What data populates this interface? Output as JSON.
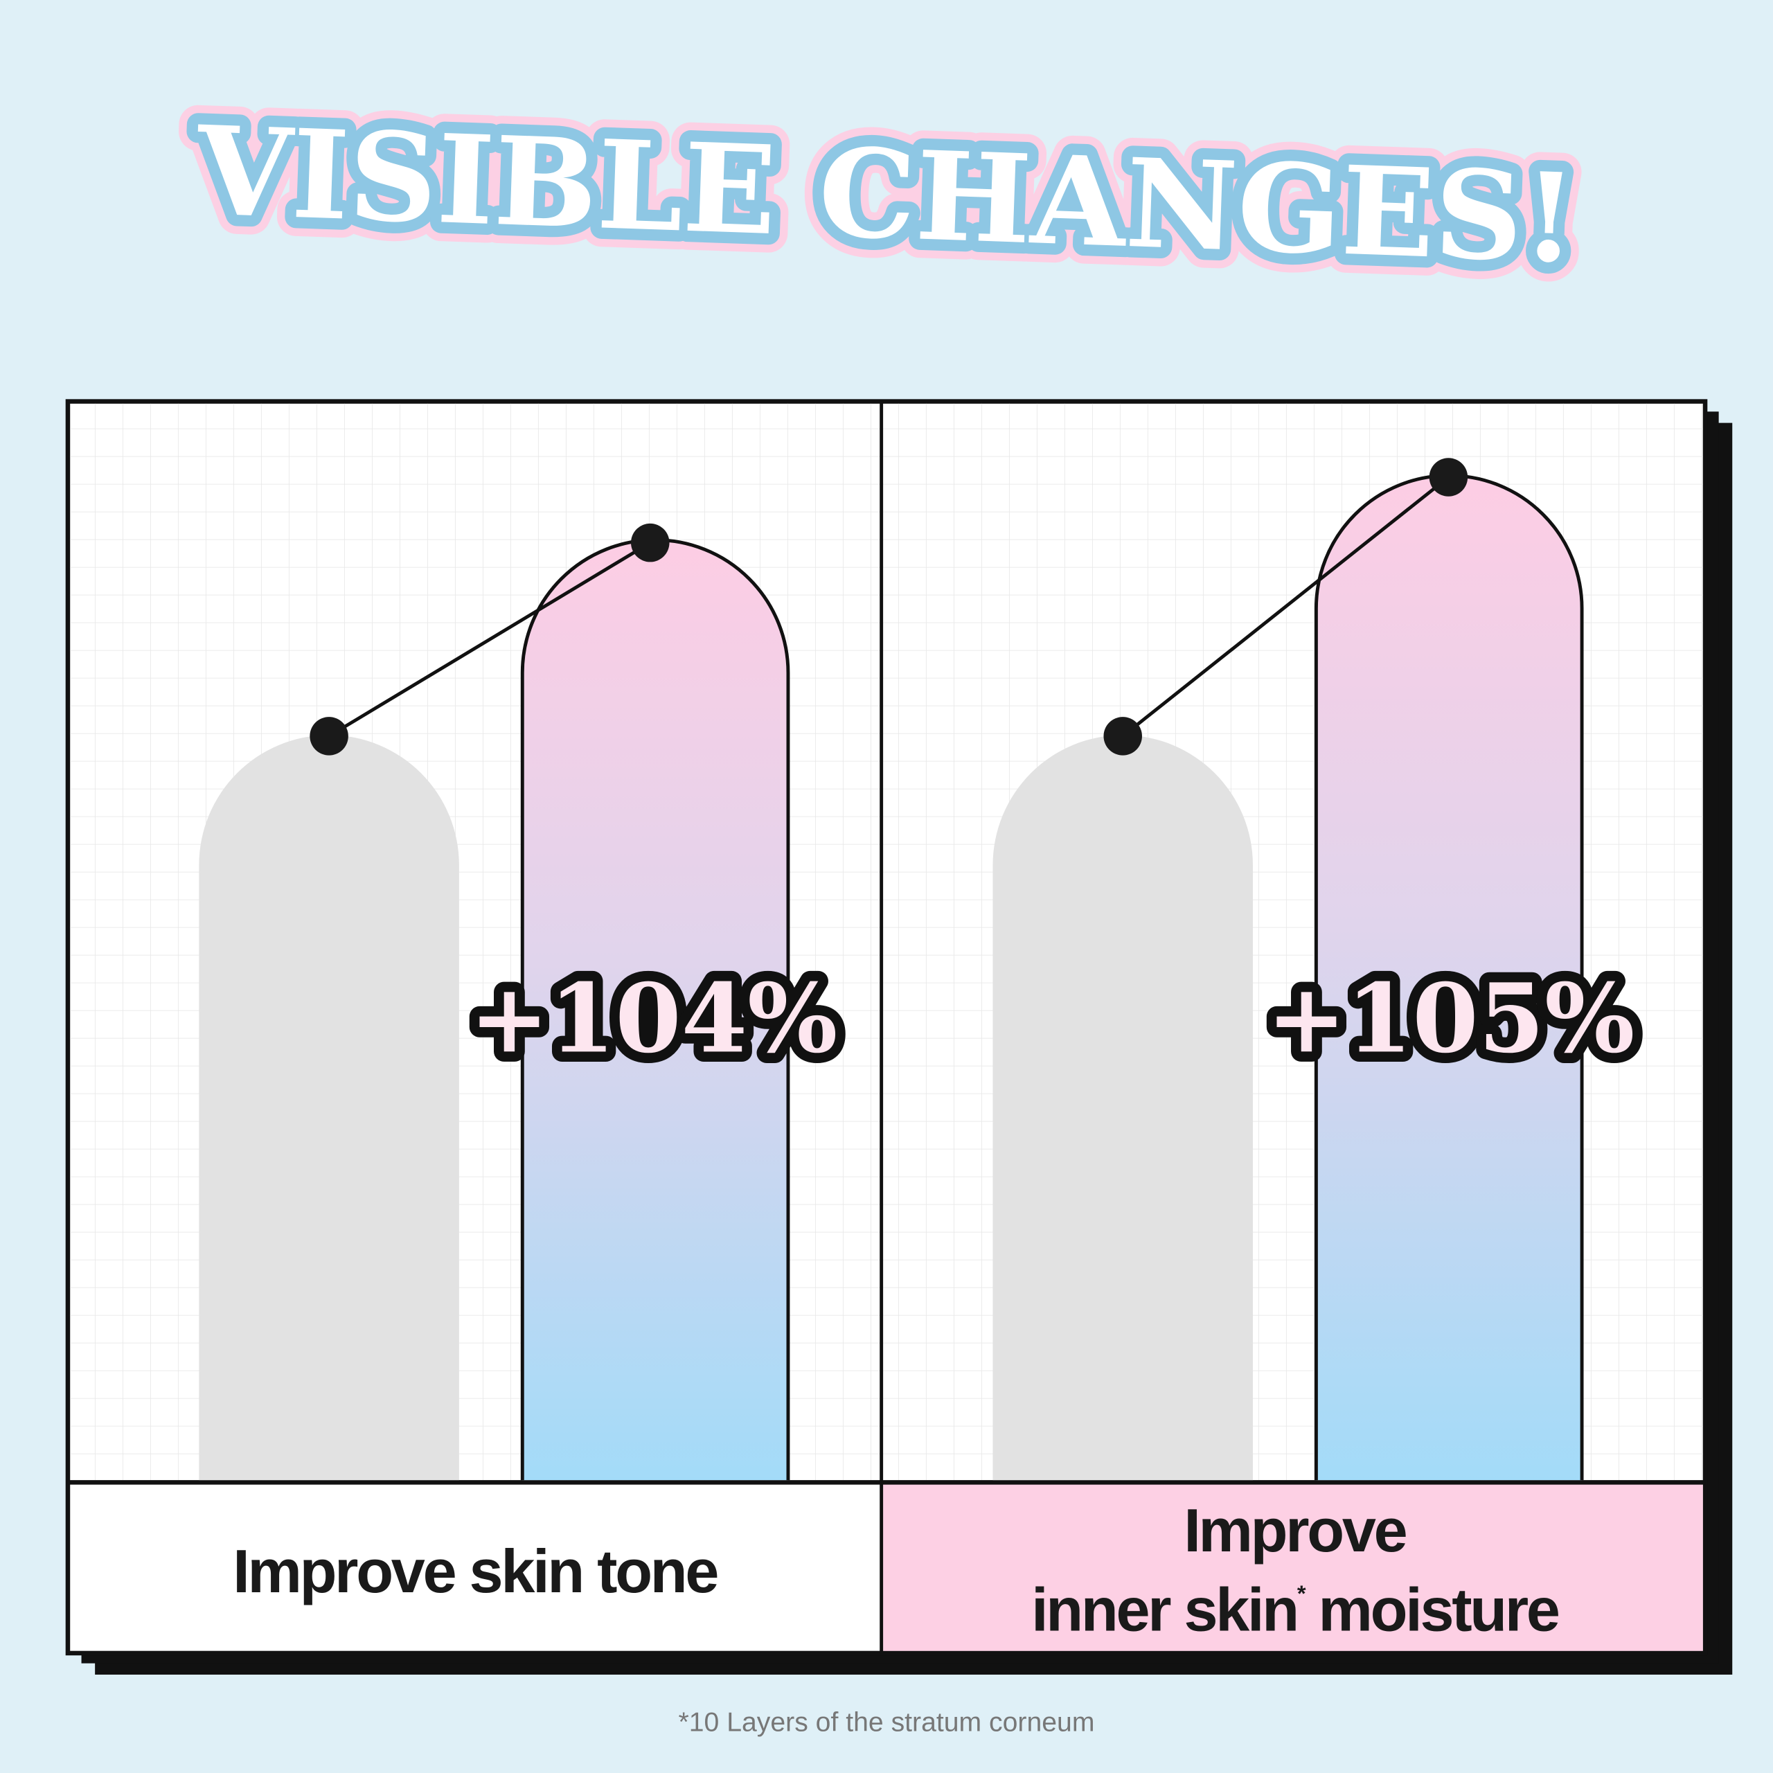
{
  "header": {
    "title": "VISIBLE CHANGES!"
  },
  "panels": [
    {
      "value_label": "+104%",
      "label_lines": [
        "Improve skin tone"
      ]
    },
    {
      "value_label": "+105%",
      "label_lines": [
        "Improve",
        "inner skin",
        "*",
        " moisture"
      ]
    }
  ],
  "footnote": "*10 Layers of the stratum corneum"
}
